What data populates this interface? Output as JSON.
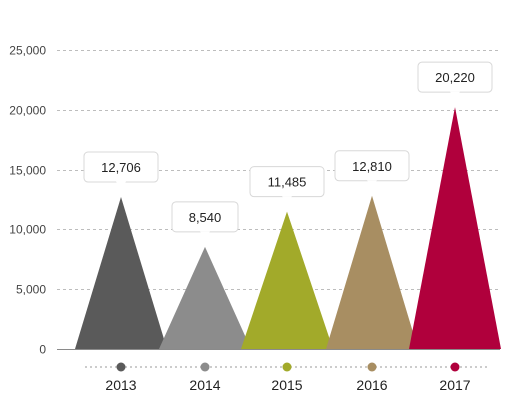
{
  "chart_data": {
    "type": "bar",
    "style": "triangle",
    "categories": [
      "2013",
      "2014",
      "2015",
      "2016",
      "2017"
    ],
    "values": [
      12706,
      8540,
      11485,
      12810,
      20220
    ],
    "value_labels": [
      "12,706",
      "8,540",
      "11,485",
      "12,810",
      "20,220"
    ],
    "colors": [
      "#5a5a5a",
      "#8c8c8c",
      "#a2aa2a",
      "#a88e62",
      "#b0003c"
    ],
    "ylim": [
      0,
      25000
    ],
    "yticks": [
      0,
      5000,
      10000,
      15000,
      20000,
      25000
    ],
    "ytick_labels": [
      "0",
      "5,000",
      "10,000",
      "15,000",
      "20,000",
      "25,000"
    ],
    "grid": true,
    "legend": "below-axis",
    "title": "",
    "xlabel": "",
    "ylabel": ""
  }
}
